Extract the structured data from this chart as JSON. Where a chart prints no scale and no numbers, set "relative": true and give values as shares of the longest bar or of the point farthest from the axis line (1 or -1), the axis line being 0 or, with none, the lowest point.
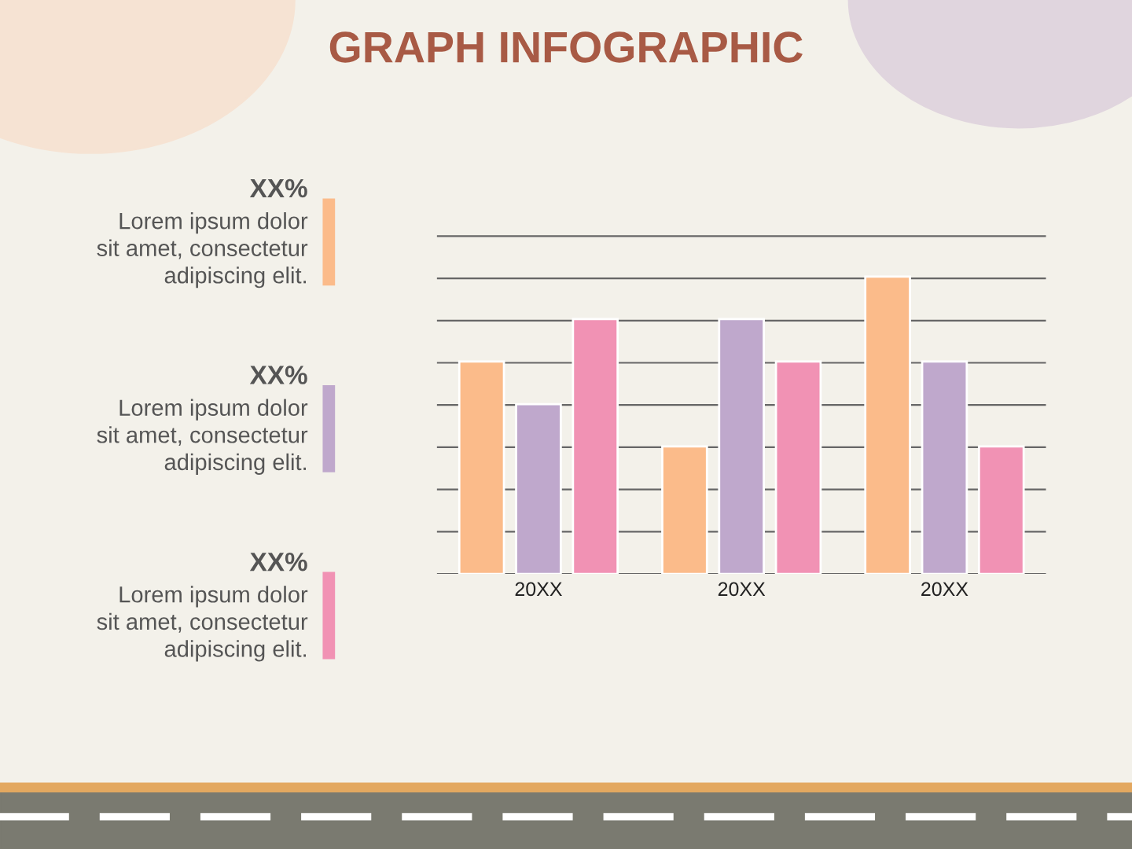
{
  "chart_data": {
    "type": "bar",
    "title": "GRAPH INFOGRAPHIC",
    "categories": [
      "20XX",
      "20XX",
      "20XX"
    ],
    "relative": true,
    "grid": "y",
    "series": [
      {
        "color": "#fbbb8a",
        "values": [
          0.714,
          0.429,
          1
        ]
      },
      {
        "color": "#bfa8cc",
        "values": [
          0.571,
          0.857,
          0.714
        ]
      },
      {
        "color": "#f192b4",
        "values": [
          0.857,
          0.714,
          0.429
        ]
      }
    ],
    "annotations": [
      "XX%\nLorem ipsum dolor\nsit amet, consectetur\nadipiscing elit.",
      "XX%\nLorem ipsum dolor\nsit amet, consectetur\nadipiscing elit.",
      "XX%\nLorem ipsum dolor\nsit amet, consectetur\nadipiscing elit."
    ]
  }
}
